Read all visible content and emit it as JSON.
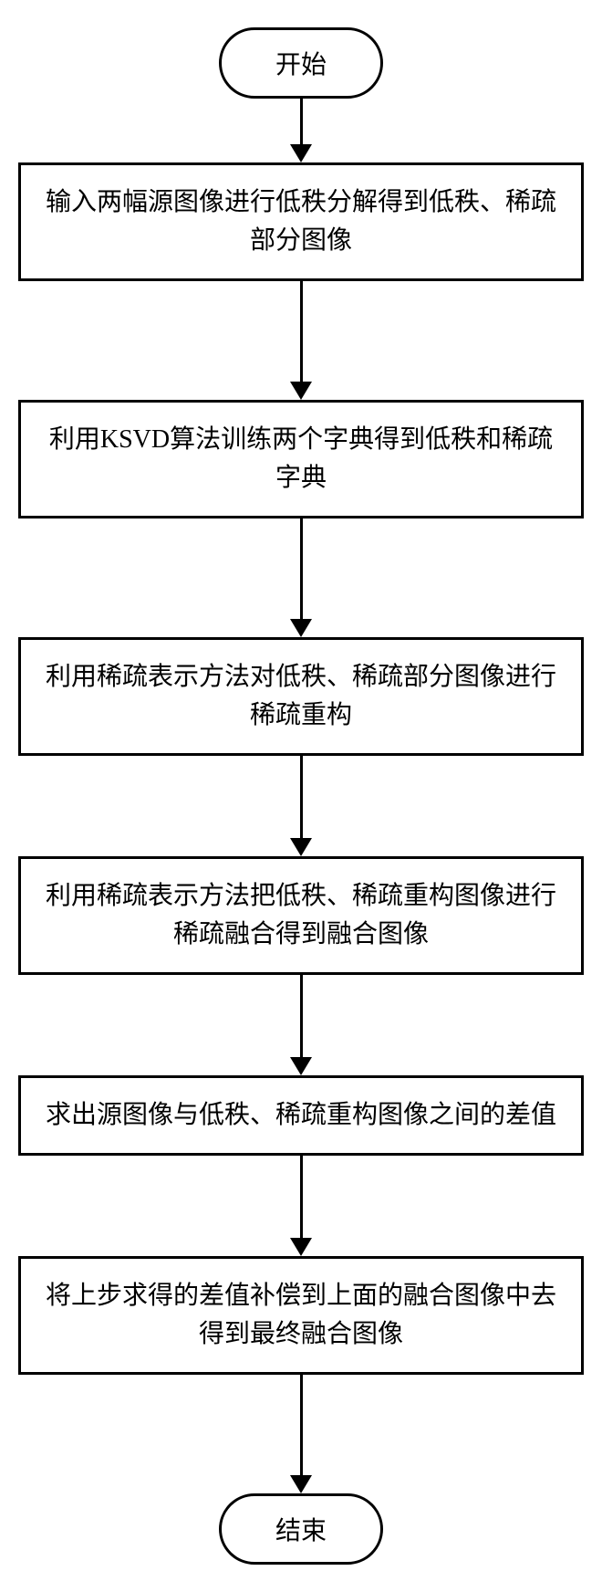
{
  "flowchart": {
    "nodes": [
      {
        "id": "start",
        "type": "terminal",
        "text": "开始"
      },
      {
        "id": "step1",
        "type": "process",
        "text": "输入两幅源图像进行低秩分解得到低秩、稀疏部分图像"
      },
      {
        "id": "step2",
        "type": "process",
        "text": "利用KSVD算法训练两个字典得到低秩和稀疏字典"
      },
      {
        "id": "step3",
        "type": "process",
        "text": "利用稀疏表示方法对低秩、稀疏部分图像进行稀疏重构"
      },
      {
        "id": "step4",
        "type": "process",
        "text": "利用稀疏表示方法把低秩、稀疏重构图像进行稀疏融合得到融合图像"
      },
      {
        "id": "step5",
        "type": "process",
        "text": "求出源图像与低秩、稀疏重构图像之间的差值"
      },
      {
        "id": "step6",
        "type": "process",
        "text": "将上步求得的差值补偿到上面的融合图像中去得到最终融合图像"
      },
      {
        "id": "end",
        "type": "terminal",
        "text": "结束"
      }
    ],
    "styling": {
      "border_color": "#000000",
      "border_width": 3,
      "background_color": "#ffffff",
      "font_size": 28,
      "arrow_color": "#000000",
      "terminal_border_radius": 40
    }
  }
}
